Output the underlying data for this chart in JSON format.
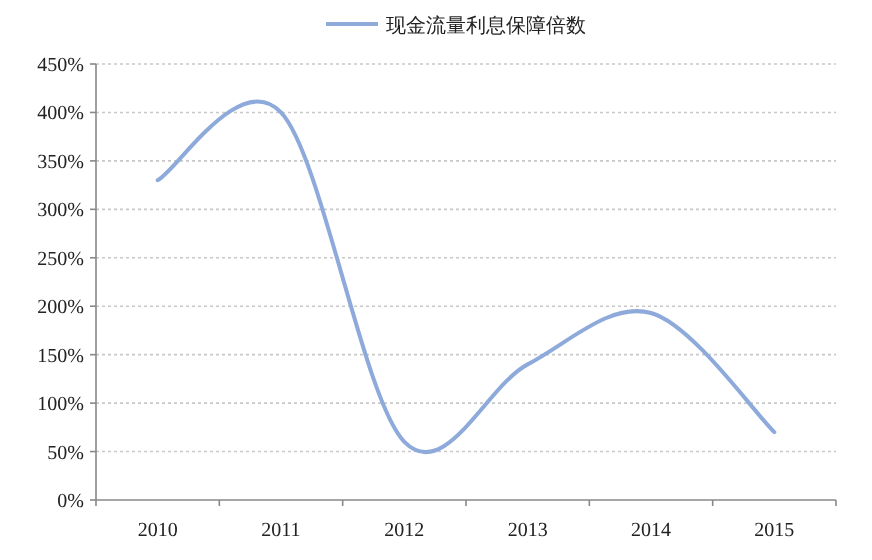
{
  "chart_data": {
    "type": "line",
    "categories": [
      "2010",
      "2011",
      "2012",
      "2013",
      "2014",
      "2015"
    ],
    "series": [
      {
        "name": "现金流量利息保障倍数",
        "color": "#8eaadb",
        "values": [
          330,
          400,
          60,
          140,
          193,
          70
        ]
      }
    ],
    "ylim": [
      0,
      450
    ],
    "yticks": [
      {
        "value": 0,
        "label": "0%"
      },
      {
        "value": 50,
        "label": "50%"
      },
      {
        "value": 100,
        "label": "100%"
      },
      {
        "value": 150,
        "label": "150%"
      },
      {
        "value": 200,
        "label": "200%"
      },
      {
        "value": 250,
        "label": "250%"
      },
      {
        "value": 300,
        "label": "300%"
      },
      {
        "value": 350,
        "label": "350%"
      },
      {
        "value": 400,
        "label": "400%"
      },
      {
        "value": 450,
        "label": "450%"
      }
    ],
    "grid": "y",
    "legend": "top",
    "marker": "none",
    "line_style": "solid"
  }
}
